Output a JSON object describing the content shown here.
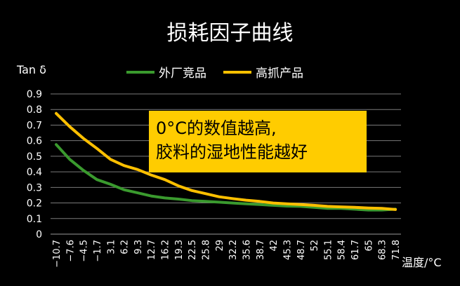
{
  "chart_data": {
    "type": "line",
    "title": "损耗因子曲线",
    "ylabel": "Tan δ",
    "xlabel": "温度/°C",
    "ylim": [
      0,
      0.9
    ],
    "yticks": [
      "0",
      "0.1",
      "0.2",
      "0.3",
      "0.4",
      "0.5",
      "0.6",
      "0.7",
      "0.8",
      "0.9"
    ],
    "grid": true,
    "legend": "top",
    "x": [
      -10.7,
      -7.6,
      -4.5,
      -1.7,
      3.1,
      6.2,
      9.3,
      12.7,
      16.2,
      19.3,
      22.5,
      25.8,
      29,
      32.2,
      35.6,
      38.7,
      42,
      45.3,
      48.7,
      52,
      55.1,
      58.4,
      61.7,
      65,
      68.3,
      71.8
    ],
    "x_tick_labels": [
      "−10.7",
      "−7.6",
      "−4.5",
      "−1.7",
      "3.1",
      "6.2",
      "9.3",
      "12.7",
      "16.2",
      "19.3",
      "22.5",
      "25.8",
      "29",
      "32.2",
      "35.6",
      "38.7",
      "42",
      "45.3",
      "48.7",
      "52",
      "55.1",
      "58.4",
      "61.7",
      "65",
      "68.3",
      "71.8"
    ],
    "series": [
      {
        "name": "外厂竞品",
        "color": "#3A9A2E",
        "values": [
          0.575,
          0.48,
          0.41,
          0.35,
          0.32,
          0.285,
          0.265,
          0.245,
          0.232,
          0.225,
          0.215,
          0.21,
          0.205,
          0.2,
          0.195,
          0.19,
          0.185,
          0.18,
          0.178,
          0.172,
          0.165,
          0.165,
          0.16,
          0.155,
          0.155,
          0.16
        ]
      },
      {
        "name": "高抓产品",
        "color": "#FFC000",
        "values": [
          0.775,
          0.69,
          0.615,
          0.55,
          0.48,
          0.44,
          0.415,
          0.38,
          0.35,
          0.31,
          0.28,
          0.26,
          0.24,
          0.228,
          0.218,
          0.21,
          0.2,
          0.195,
          0.19,
          0.185,
          0.178,
          0.175,
          0.172,
          0.168,
          0.165,
          0.158
        ]
      }
    ]
  },
  "annotation": {
    "line1": "0°C的数值越高,",
    "line2": "胶料的湿地性能越好",
    "bg": "#FFCC00"
  }
}
